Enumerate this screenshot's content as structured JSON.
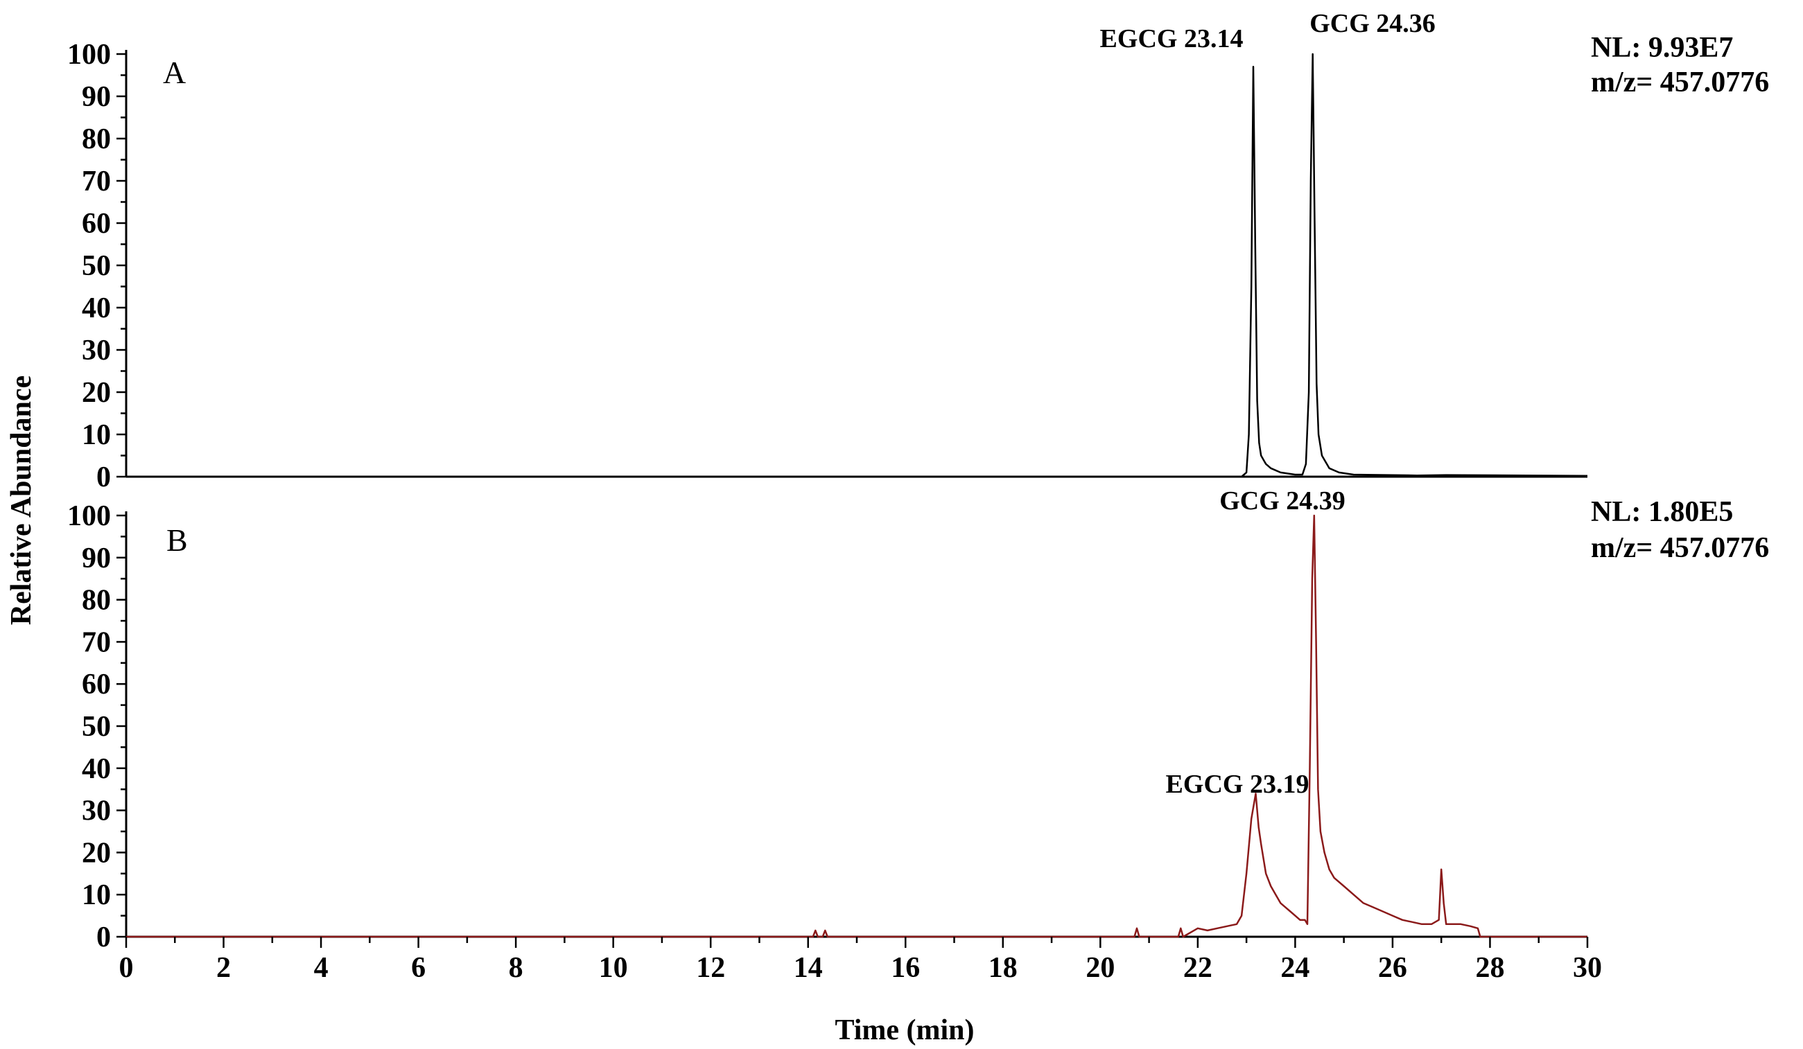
{
  "chart_data": {
    "type": "line",
    "xlabel": "Time (min)",
    "ylabel": "Relative Abundance",
    "xlim": [
      0,
      30
    ],
    "ylim": [
      0,
      100
    ],
    "x_ticks": [
      "0",
      "2",
      "4",
      "6",
      "8",
      "10",
      "12",
      "14",
      "16",
      "18",
      "20",
      "22",
      "24",
      "26",
      "28",
      "30"
    ],
    "y_ticks": [
      "0",
      "10",
      "20",
      "30",
      "40",
      "50",
      "60",
      "70",
      "80",
      "90",
      "100"
    ],
    "line_colors": {
      "A": "#000000",
      "B": "#8b1a1a"
    },
    "panels": [
      {
        "letter": "A",
        "nl": "NL: 9.93E7",
        "mz": "m/z= 457.0776",
        "peaks": [
          {
            "label": "EGCG 23.14",
            "x": 23.14,
            "y": 97
          },
          {
            "label": "GCG 24.36",
            "x": 24.36,
            "y": 100
          }
        ],
        "series": [
          {
            "x": [
              0,
              22.9,
              23.0,
              23.05,
              23.1,
              23.14,
              23.18,
              23.22,
              23.26,
              23.3,
              23.4,
              23.5,
              23.7,
              24.0,
              24.15,
              24.22,
              24.28,
              24.32,
              24.36,
              24.4,
              24.44,
              24.48,
              24.55,
              24.7,
              24.9,
              25.2,
              26.5,
              27.1,
              30
            ],
            "y": [
              0,
              0,
              1,
              10,
              45,
              97,
              55,
              18,
              8,
              5,
              3,
              2,
              1,
              0.5,
              0.5,
              3,
              20,
              70,
              100,
              60,
              22,
              10,
              5,
              2,
              1,
              0.5,
              0.3,
              0.4,
              0.2
            ]
          }
        ]
      },
      {
        "letter": "B",
        "nl": "NL: 1.80E5",
        "mz": "m/z= 457.0776",
        "peaks": [
          {
            "label": "GCG 24.39",
            "x": 24.39,
            "y": 100
          },
          {
            "label": "EGCG  23.19",
            "x": 23.19,
            "y": 34
          }
        ],
        "series": [
          {
            "x": [
              0,
              14.1,
              14.15,
              14.2,
              14.3,
              14.35,
              14.4,
              20.7,
              20.75,
              20.8,
              21.6,
              21.65,
              21.7,
              22.0,
              22.2,
              22.4,
              22.6,
              22.8,
              22.9,
              23.0,
              23.1,
              23.19,
              23.25,
              23.3,
              23.4,
              23.5,
              23.6,
              23.7,
              23.8,
              23.9,
              24.0,
              24.1,
              24.2,
              24.25,
              24.3,
              24.35,
              24.39,
              24.43,
              24.47,
              24.52,
              24.6,
              24.7,
              24.8,
              25.0,
              25.2,
              25.4,
              25.6,
              25.8,
              26.0,
              26.2,
              26.4,
              26.6,
              26.8,
              26.95,
              27.0,
              27.05,
              27.1,
              27.2,
              27.4,
              27.6,
              27.75,
              27.8,
              30
            ],
            "y": [
              0,
              0,
              1.5,
              0,
              0,
              1.5,
              0,
              0,
              2,
              0,
              0,
              2,
              0,
              2,
              1.5,
              2,
              2.5,
              3,
              5,
              15,
              28,
              34,
              26,
              22,
              15,
              12,
              10,
              8,
              7,
              6,
              5,
              4,
              4,
              3,
              40,
              85,
              100,
              70,
              35,
              25,
              20,
              16,
              14,
              12,
              10,
              8,
              7,
              6,
              5,
              4,
              3.5,
              3,
              3,
              4,
              16,
              8,
              3,
              3,
              3,
              2.5,
              2,
              0,
              0
            ]
          }
        ]
      }
    ]
  }
}
